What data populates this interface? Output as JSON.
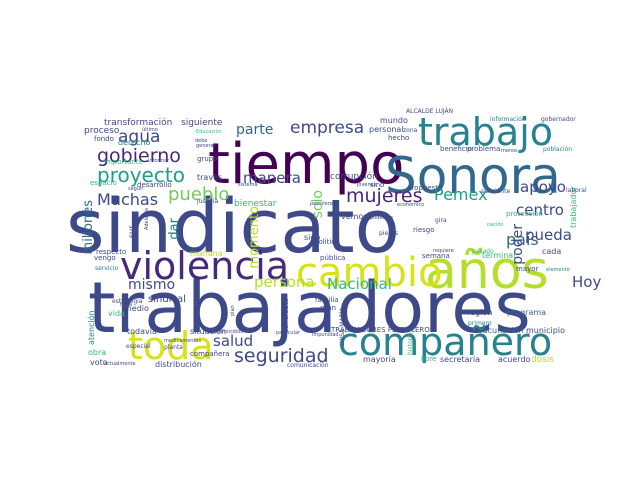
{
  "palette": {
    "purple": "#440154",
    "violet": "#482878",
    "indigo": "#3e4989",
    "blue": "#31688e",
    "teal": "#26828e",
    "green": "#1f9e89",
    "mint": "#35b779",
    "lime": "#6ece58",
    "yellow": "#b5de2b",
    "gold": "#d8e219"
  },
  "words": [
    {
      "text": "sindicato",
      "c": "indigo"
    },
    {
      "text": "trabajadores",
      "c": "indigo"
    },
    {
      "text": "tiempo",
      "c": "purple"
    },
    {
      "text": "Sonora",
      "c": "blue"
    },
    {
      "text": "años",
      "c": "yellow"
    },
    {
      "text": "violencia",
      "c": "violet"
    },
    {
      "text": "cambio",
      "c": "gold"
    },
    {
      "text": "trabajo",
      "c": "teal"
    },
    {
      "text": "compañero",
      "c": "teal"
    },
    {
      "text": "toda",
      "c": "gold"
    },
    {
      "text": "gobierno",
      "c": "violet"
    },
    {
      "text": "proyecto",
      "c": "green"
    },
    {
      "text": "empresa",
      "c": "indigo"
    },
    {
      "text": "pueblo",
      "c": "lime"
    },
    {
      "text": "mujeres",
      "c": "violet"
    },
    {
      "text": "agua",
      "c": "indigo"
    },
    {
      "text": "parte",
      "c": "blue"
    },
    {
      "text": "Muchas",
      "c": "indigo"
    },
    {
      "text": "manera",
      "c": "indigo"
    },
    {
      "text": "seguridad",
      "c": "indigo"
    },
    {
      "text": "persona",
      "c": "yellow"
    },
    {
      "text": "Nacional",
      "c": "mint"
    },
    {
      "text": "país",
      "c": "blue"
    },
    {
      "text": "Pemex",
      "c": "green"
    },
    {
      "text": "apoyo",
      "c": "indigo"
    },
    {
      "text": "centro",
      "c": "indigo"
    },
    {
      "text": "pueda",
      "c": "indigo"
    },
    {
      "text": "Hoy",
      "c": "indigo"
    },
    {
      "text": "salud",
      "c": "indigo"
    },
    {
      "text": "mismo",
      "c": "indigo"
    },
    {
      "text": "momento",
      "c": "yellow"
    },
    {
      "text": "millones",
      "c": "blue"
    },
    {
      "text": "dar",
      "c": "teal"
    },
    {
      "text": "solo",
      "c": "lime"
    },
    {
      "text": "poder",
      "c": "indigo"
    },
    {
      "text": "sindical",
      "c": "indigo"
    },
    {
      "text": "transformación",
      "c": "indigo"
    },
    {
      "text": "siguiente",
      "c": "indigo"
    },
    {
      "text": "proceso",
      "c": "indigo"
    },
    {
      "text": "derecho",
      "c": "teal"
    },
    {
      "text": "corrupción",
      "c": "indigo"
    },
    {
      "text": "bienestar",
      "c": "mint"
    },
    {
      "text": "mañana",
      "c": "yellow"
    },
    {
      "text": "vida",
      "c": "mint"
    },
    {
      "text": "medio",
      "c": "indigo"
    },
    {
      "text": "todavía",
      "c": "indigo"
    },
    {
      "text": "situación",
      "c": "indigo"
    },
    {
      "text": "mayoría",
      "c": "indigo"
    },
    {
      "text": "secretaría",
      "c": "indigo"
    },
    {
      "text": "acuerdo",
      "c": "indigo"
    },
    {
      "text": "dosis",
      "c": "yellow"
    },
    {
      "text": "región",
      "c": "indigo"
    },
    {
      "text": "programa",
      "c": "blue"
    },
    {
      "text": "municipio",
      "c": "indigo"
    },
    {
      "text": "vacunación",
      "c": "blue"
    },
    {
      "text": "terminar",
      "c": "mint"
    },
    {
      "text": "semana",
      "c": "indigo"
    },
    {
      "text": "riesgo",
      "c": "indigo"
    },
    {
      "text": "mundo",
      "c": "indigo"
    },
    {
      "text": "personal",
      "c": "indigo"
    },
    {
      "text": "hecho",
      "c": "indigo"
    },
    {
      "text": "beneficio",
      "c": "indigo"
    },
    {
      "text": "problema",
      "c": "indigo"
    },
    {
      "text": "grupo",
      "c": "indigo"
    },
    {
      "text": "través",
      "c": "indigo"
    },
    {
      "text": "desarrollo",
      "c": "indigo"
    },
    {
      "text": "justicia",
      "c": "indigo"
    },
    {
      "text": "sino",
      "c": "indigo"
    },
    {
      "text": "propuesta",
      "c": "indigo"
    },
    {
      "text": "cada",
      "c": "indigo"
    },
    {
      "text": "mayor",
      "c": "indigo"
    },
    {
      "text": "vemos",
      "c": "indigo"
    },
    {
      "text": "sido",
      "c": "indigo"
    },
    {
      "text": "candidato",
      "c": "indigo"
    },
    {
      "text": "política",
      "c": "indigo"
    },
    {
      "text": "pública",
      "c": "indigo"
    },
    {
      "text": "familia",
      "c": "indigo"
    },
    {
      "text": "gran",
      "c": "indigo"
    },
    {
      "text": "compañera",
      "c": "indigo"
    },
    {
      "text": "distribución",
      "c": "indigo"
    },
    {
      "text": "atención",
      "c": "teal"
    },
    {
      "text": "voto",
      "c": "indigo"
    },
    {
      "text": "obra",
      "c": "mint"
    },
    {
      "text": "fondo",
      "c": "indigo"
    },
    {
      "text": "vengo",
      "c": "indigo"
    },
    {
      "text": "sur",
      "c": "indigo"
    },
    {
      "text": "Ciudad",
      "c": "indigo"
    },
    {
      "text": "TRABAJADORES PETROLEROS",
      "c": "indigo"
    },
    {
      "text": "ALCALDE LUJÁN",
      "c": "indigo"
    },
    {
      "text": "LUISA MARÍA",
      "c": "indigo"
    },
    {
      "text": "trabajador",
      "c": "mint"
    },
    {
      "text": "protección",
      "c": "mint"
    },
    {
      "text": "libre",
      "c": "mint"
    },
    {
      "text": "comunicación",
      "c": "indigo"
    },
    {
      "text": "estrategia",
      "c": "indigo"
    },
    {
      "text": "importante",
      "c": "mint"
    },
    {
      "text": "respecto",
      "c": "indigo"
    },
    {
      "text": "suficiente",
      "c": "indigo"
    },
    {
      "text": "población",
      "c": "teal"
    },
    {
      "text": "información",
      "c": "teal"
    },
    {
      "text": "gobernador",
      "c": "indigo"
    },
    {
      "text": "primero",
      "c": "teal"
    },
    {
      "text": "especial",
      "c": "indigo"
    },
    {
      "text": "planta",
      "c": "indigo"
    },
    {
      "text": "piezas",
      "c": "indigo"
    },
    {
      "text": "gira",
      "c": "indigo"
    },
    {
      "text": "zona",
      "c": "indigo"
    },
    {
      "text": "laboral",
      "c": "indigo"
    },
    {
      "text": "historia",
      "c": "mint"
    },
    {
      "text": "pasado",
      "c": "mint"
    },
    {
      "text": "espacio",
      "c": "mint"
    },
    {
      "text": "informar",
      "c": "indigo"
    },
    {
      "text": "medicamentos",
      "c": "indigo"
    },
    {
      "text": "homicidios",
      "c": "indigo"
    },
    {
      "text": "plan",
      "c": "indigo"
    },
    {
      "text": "particular",
      "c": "indigo"
    },
    {
      "text": "podemos",
      "c": "indigo"
    },
    {
      "text": "impunidad",
      "c": "indigo"
    },
    {
      "text": "último",
      "c": "indigo"
    },
    {
      "text": "sistema",
      "c": "indigo"
    },
    {
      "text": "jóvenes",
      "c": "indigo"
    },
    {
      "text": "petrolero",
      "c": "indigo"
    },
    {
      "text": "económico",
      "c": "indigo"
    },
    {
      "text": "servicio",
      "c": "teal"
    },
    {
      "text": "elemento",
      "c": "teal"
    },
    {
      "text": "actualmente",
      "c": "indigo"
    },
    {
      "text": "general",
      "c": "indigo"
    },
    {
      "text": "seguir",
      "c": "indigo"
    },
    {
      "text": "debe",
      "c": "indigo"
    },
    {
      "text": "requiere",
      "c": "indigo"
    },
    {
      "text": "trata",
      "c": "indigo"
    },
    {
      "text": "Educación",
      "c": "mint"
    },
    {
      "text": "menos",
      "c": "indigo"
    },
    {
      "text": "Adelante",
      "c": "indigo"
    },
    {
      "text": "nación",
      "c": "mint"
    }
  ]
}
